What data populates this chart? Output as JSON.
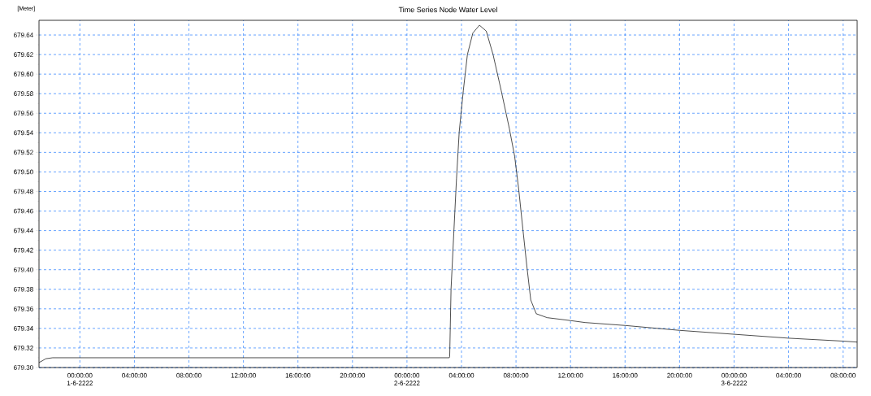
{
  "chart_data": {
    "type": "line",
    "title": "Time Series Node Water Level",
    "ylabel": "[Meter]",
    "x": [
      "2222-05-31T21:00",
      "2222-05-31T21:30",
      "2222-05-31T22:00",
      "2222-06-02T03:06",
      "2222-06-02T03:08",
      "2222-06-02T03:14",
      "2222-06-02T03:26",
      "2222-06-02T03:38",
      "2222-06-02T03:50",
      "2222-06-02T04:08",
      "2222-06-02T04:26",
      "2222-06-02T04:50",
      "2222-06-02T05:19",
      "2222-06-02T05:49",
      "2222-06-02T06:19",
      "2222-06-02T06:55",
      "2222-06-02T07:31",
      "2222-06-02T07:54",
      "2222-06-02T08:12",
      "2222-06-02T08:30",
      "2222-06-02T08:48",
      "2222-06-02T09:05",
      "2222-06-02T09:29",
      "2222-06-02T10:17",
      "2222-06-02T12:00",
      "2222-06-02T13:04",
      "2222-06-02T16:00",
      "2222-06-02T20:00",
      "2222-06-03T00:00",
      "2222-06-03T04:00",
      "2222-06-03T08:00",
      "2222-06-03T09:02"
    ],
    "series": [
      {
        "color": "#000000",
        "values": [
          679.305,
          679.309,
          679.31,
          679.31,
          679.311,
          679.38,
          679.437,
          679.493,
          679.541,
          679.583,
          679.62,
          679.642,
          679.65,
          679.644,
          679.62,
          679.583,
          679.544,
          679.516,
          679.482,
          679.442,
          679.403,
          679.369,
          679.355,
          679.351,
          679.348,
          679.346,
          679.343,
          679.338,
          679.334,
          679.33,
          679.327,
          679.326
        ]
      }
    ],
    "xlim": [
      "2222-05-31T21:00",
      "2222-06-03T09:02"
    ],
    "xticks": [
      {
        "value": "2222-06-01T00:00",
        "label": "00:00:00 1-6-2222"
      },
      {
        "value": "2222-06-01T04:00",
        "label": "04:00:00"
      },
      {
        "value": "2222-06-01T08:00",
        "label": "08:00:00"
      },
      {
        "value": "2222-06-01T12:00",
        "label": "12:00:00"
      },
      {
        "value": "2222-06-01T16:00",
        "label": "16:00:00"
      },
      {
        "value": "2222-06-01T20:00",
        "label": "20:00:00"
      },
      {
        "value": "2222-06-02T00:00",
        "label": "00:00:00 2-6-2222"
      },
      {
        "value": "2222-06-02T04:00",
        "label": "04:00:00"
      },
      {
        "value": "2222-06-02T08:00",
        "label": "08:00:00"
      },
      {
        "value": "2222-06-02T12:00",
        "label": "12:00:00"
      },
      {
        "value": "2222-06-02T16:00",
        "label": "16:00:00"
      },
      {
        "value": "2222-06-02T20:00",
        "label": "20:00:00"
      },
      {
        "value": "2222-06-03T00:00",
        "label": "00:00:00 3-6-2222"
      },
      {
        "value": "2222-06-03T04:00",
        "label": "04:00:00"
      },
      {
        "value": "2222-06-03T08:00",
        "label": "08:00:00"
      }
    ],
    "ylim": [
      679.3,
      679.655
    ],
    "yticks": [
      {
        "value": 679.3,
        "label": "679.30"
      },
      {
        "value": 679.32,
        "label": "679.32"
      },
      {
        "value": 679.34,
        "label": "679.34"
      },
      {
        "value": 679.36,
        "label": "679.36"
      },
      {
        "value": 679.38,
        "label": "679.38"
      },
      {
        "value": 679.4,
        "label": "679.40"
      },
      {
        "value": 679.42,
        "label": "679.42"
      },
      {
        "value": 679.44,
        "label": "679.44"
      },
      {
        "value": 679.46,
        "label": "679.46"
      },
      {
        "value": 679.48,
        "label": "679.48"
      },
      {
        "value": 679.5,
        "label": "679.50"
      },
      {
        "value": 679.52,
        "label": "679.52"
      },
      {
        "value": 679.54,
        "label": "679.54"
      },
      {
        "value": 679.56,
        "label": "679.56"
      },
      {
        "value": 679.58,
        "label": "679.58"
      },
      {
        "value": 679.6,
        "label": "679.60"
      },
      {
        "value": 679.62,
        "label": "679.62"
      },
      {
        "value": 679.64,
        "label": "679.64"
      }
    ],
    "grid": true,
    "marker": "none",
    "line_style": "solid",
    "legend": false
  }
}
